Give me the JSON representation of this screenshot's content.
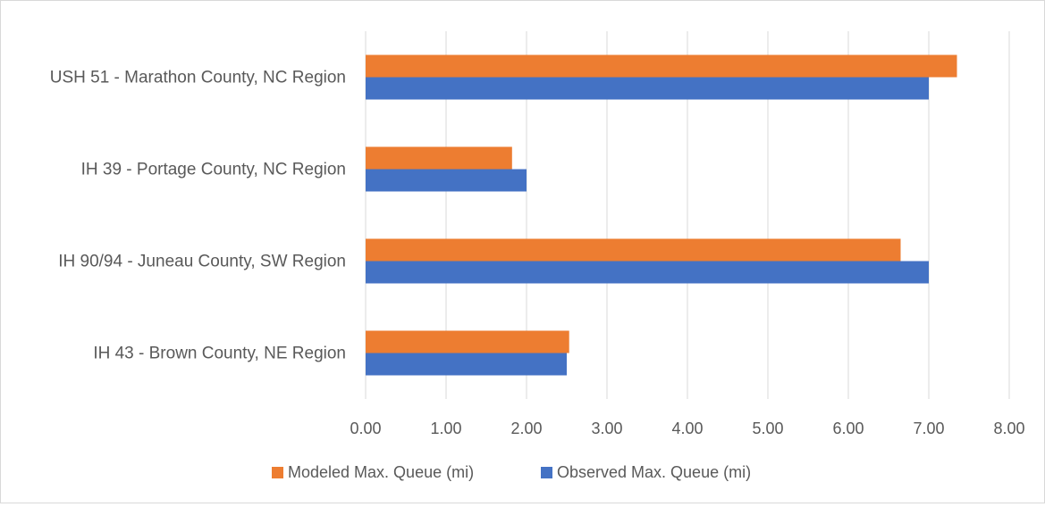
{
  "chart_data": {
    "type": "bar",
    "orientation": "horizontal",
    "title": "",
    "xlabel": "",
    "ylabel": "",
    "categories": [
      "USH 51 - Marathon County, NC Region",
      "IH 39 - Portage County, NC Region",
      "IH 90/94 - Juneau County, SW Region",
      "IH 43 - Brown County, NE Region"
    ],
    "series": [
      {
        "name": "Modeled Max. Queue (mi)",
        "color": "#ED7D31",
        "values": [
          7.35,
          1.82,
          6.65,
          2.53
        ]
      },
      {
        "name": "Observed Max. Queue (mi)",
        "color": "#4472C4",
        "values": [
          7.0,
          2.0,
          7.0,
          2.5
        ]
      }
    ],
    "xlim": [
      0,
      8
    ],
    "xticks": [
      "0.00",
      "1.00",
      "2.00",
      "3.00",
      "4.00",
      "5.00",
      "6.00",
      "7.00",
      "8.00"
    ],
    "grid": "vertical",
    "legend_position": "bottom"
  }
}
